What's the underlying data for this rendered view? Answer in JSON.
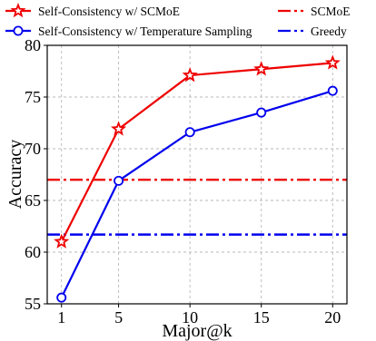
{
  "chart_data": {
    "type": "line",
    "xlabel": "Major@k",
    "ylabel": "Accuracy",
    "x": [
      1,
      5,
      10,
      15,
      20
    ],
    "xticks": [
      "1",
      "5",
      "10",
      "15",
      "20"
    ],
    "xlim": [
      0,
      21
    ],
    "ylim": [
      55,
      80
    ],
    "yticks": [
      "55",
      "60",
      "65",
      "70",
      "75",
      "80"
    ],
    "grid": true,
    "legend_position": "top",
    "series": [
      {
        "name": "Self-Consistency w/ SCMoE",
        "values": [
          61.0,
          71.9,
          77.1,
          77.7,
          78.3
        ],
        "color": "#ee0000",
        "marker": "star",
        "line_style": "solid"
      },
      {
        "name": "Self-Consistency w/ Temperature Sampling",
        "values": [
          55.6,
          66.9,
          71.6,
          73.5,
          75.6
        ],
        "color": "#0000ee",
        "marker": "circle",
        "line_style": "solid"
      }
    ],
    "reference_lines": [
      {
        "name": "SCMoE",
        "value": 67.0,
        "color": "#ee0000",
        "line_style": "dashdot"
      },
      {
        "name": "Greedy",
        "value": 61.7,
        "color": "#0000ee",
        "line_style": "dashdot"
      }
    ]
  }
}
